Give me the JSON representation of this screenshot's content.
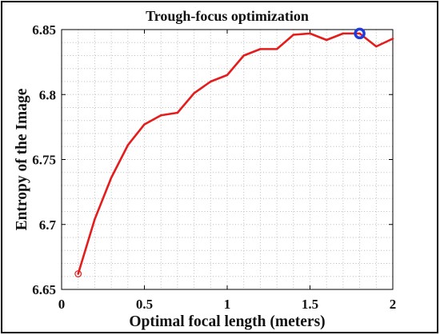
{
  "chart_data": {
    "type": "line",
    "title": "Trough-focus optimization",
    "xlabel": "Optimal focal length (meters)",
    "ylabel": "Entropy of the Image",
    "xlim": [
      0,
      2
    ],
    "ylim": [
      6.65,
      6.85
    ],
    "xticks": [
      0,
      0.5,
      1,
      1.5,
      2
    ],
    "yticks": [
      6.65,
      6.7,
      6.75,
      6.8,
      6.85
    ],
    "grid": true,
    "series": [
      {
        "color": "#e41c1c",
        "x": [
          0.1,
          0.2,
          0.3,
          0.4,
          0.5,
          0.6,
          0.7,
          0.8,
          0.9,
          1.0,
          1.1,
          1.2,
          1.3,
          1.4,
          1.5,
          1.6,
          1.7,
          1.8,
          1.9,
          2.0
        ],
        "y": [
          6.662,
          6.704,
          6.736,
          6.761,
          6.777,
          6.784,
          6.786,
          6.801,
          6.81,
          6.815,
          6.83,
          6.835,
          6.835,
          6.846,
          6.847,
          6.842,
          6.847,
          6.847,
          6.837,
          6.843
        ]
      }
    ],
    "start_marker": {
      "x": 0.1,
      "y": 6.662,
      "color": "#e41c1c"
    },
    "peak_marker": {
      "x": 1.8,
      "y": 6.847,
      "color": "#1f3cdc"
    }
  }
}
